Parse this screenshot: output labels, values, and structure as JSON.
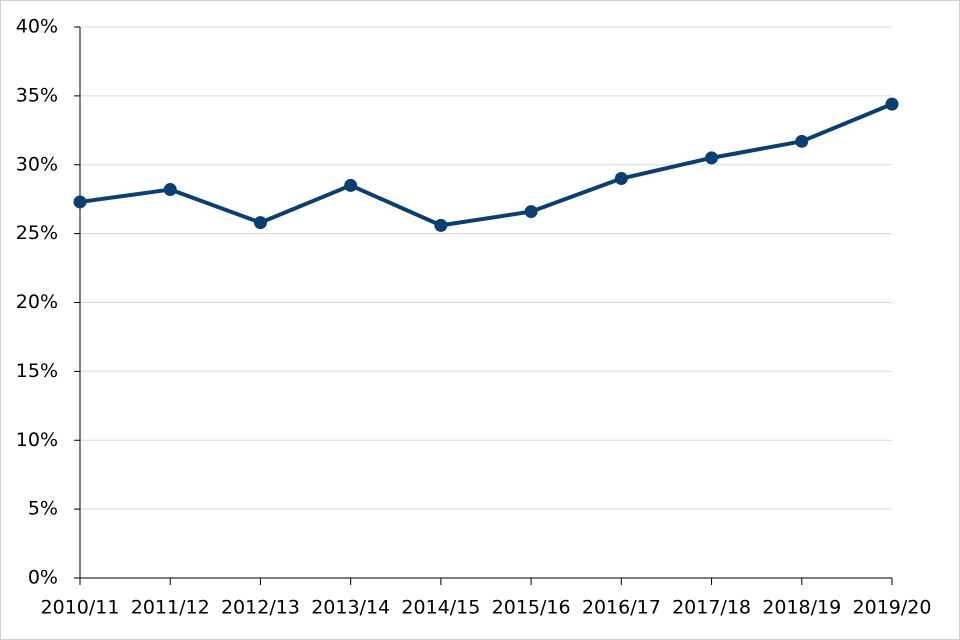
{
  "chart_data": {
    "type": "line",
    "categories": [
      "2010/11",
      "2011/12",
      "2012/13",
      "2013/14",
      "2014/15",
      "2015/16",
      "2016/17",
      "2017/18",
      "2018/19",
      "2019/20"
    ],
    "series": [
      {
        "color": "#0b3f6f",
        "values": [
          27.3,
          28.2,
          25.8,
          28.5,
          25.6,
          26.6,
          29.0,
          30.5,
          31.7,
          34.4
        ]
      }
    ],
    "ylim": [
      0,
      40
    ],
    "yticks": [
      {
        "value": 0,
        "label": "0%"
      },
      {
        "value": 5,
        "label": "5%"
      },
      {
        "value": 10,
        "label": "10%"
      },
      {
        "value": 15,
        "label": "15%"
      },
      {
        "value": 20,
        "label": "20%"
      },
      {
        "value": 25,
        "label": "25%"
      },
      {
        "value": 30,
        "label": "30%"
      },
      {
        "value": 35,
        "label": "35%"
      },
      {
        "value": 40,
        "label": "40%"
      }
    ],
    "grid": true
  }
}
